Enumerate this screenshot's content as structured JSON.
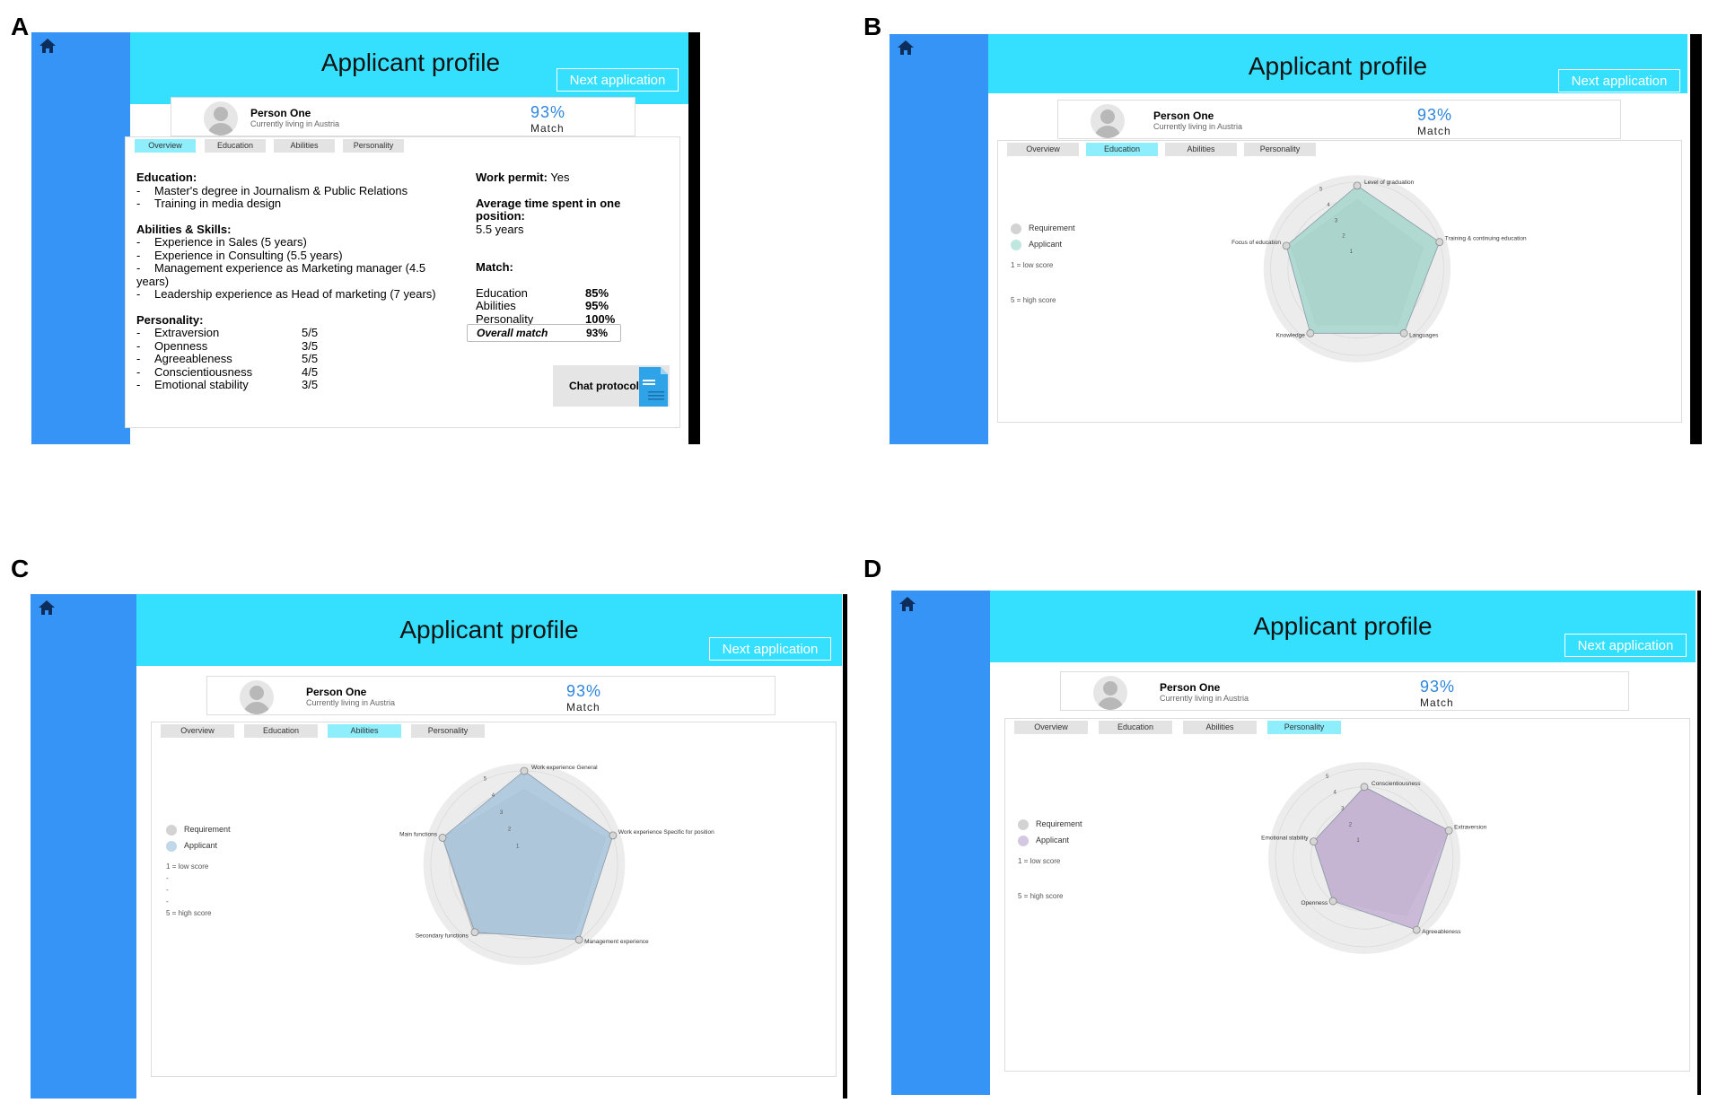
{
  "panels": [
    {
      "letter": "A",
      "active_tab": 0
    },
    {
      "letter": "B",
      "active_tab": 1
    },
    {
      "letter": "C",
      "active_tab": 2
    },
    {
      "letter": "D",
      "active_tab": 3
    }
  ],
  "header": {
    "title": "Applicant profile",
    "next_label": "Next application"
  },
  "person": {
    "name": "Person One",
    "location": "Currently living in Austria",
    "match_pct": "93%",
    "match_label": "Match"
  },
  "tabs": [
    "Overview",
    "Education",
    "Abilities",
    "Personality"
  ],
  "overview": {
    "education_head": "Education:",
    "education_items": [
      "Master's degree in Journalism & Public Relations",
      "Training in media design"
    ],
    "abilities_head": "Abilities & Skills:",
    "abilities_items": [
      "Experience in Sales (5 years)",
      "Experience in Consulting (5.5 years)",
      "Management experience as Marketing manager (4.5 years)",
      "Leadership experience as Head of marketing (7 years)"
    ],
    "personality_head": "Personality:",
    "personality_items": [
      {
        "trait": "Extraversion",
        "score": "5/5"
      },
      {
        "trait": "Openness",
        "score": "3/5"
      },
      {
        "trait": "Agreeableness",
        "score": "5/5"
      },
      {
        "trait": "Conscientiousness",
        "score": "4/5"
      },
      {
        "trait": "Emotional stability",
        "score": "3/5"
      }
    ],
    "work_permit_label": "Work permit:",
    "work_permit_value": "Yes",
    "avg_time_label": "Average time spent in one position:",
    "avg_time_value": "5.5 years",
    "match_head": "Match:",
    "match_rows": [
      {
        "label": "Education",
        "value": "85%"
      },
      {
        "label": "Abilities",
        "value": "95%"
      },
      {
        "label": "Personality",
        "value": "100%"
      }
    ],
    "overall_label": "Overall match",
    "overall_value": "93%",
    "chat_label": "Chat protocol"
  },
  "legend": {
    "requirement": "Requirement",
    "applicant": "Applicant",
    "low": "1 = low score",
    "dots": [
      "-",
      "-",
      "-"
    ],
    "high": "5 = high score"
  },
  "radar_scale_labels": [
    "1",
    "2",
    "3",
    "4",
    "5"
  ],
  "chart_data": [
    {
      "type": "radar",
      "panel": "B",
      "axes": [
        "Level of graduation",
        "Training & continuing education",
        "Languages",
        "Knowledge",
        "Focus of education"
      ],
      "series": [
        {
          "name": "Requirement",
          "values": [
            4,
            4,
            4,
            4,
            4
          ]
        },
        {
          "name": "Applicant",
          "values": [
            4.8,
            5,
            4.6,
            4.6,
            4.3
          ]
        }
      ],
      "colors": {
        "requirement": "#c8c8c8",
        "applicant": "#a5d6cc"
      }
    },
    {
      "type": "radar",
      "panel": "C",
      "axes": [
        "Work experience General",
        "Work experience Specific for position",
        "Management experience",
        "Secondary functions",
        "Main functions"
      ],
      "series": [
        {
          "name": "Requirement",
          "values": [
            4,
            4.6,
            4.6,
            4.6,
            4.6
          ]
        },
        {
          "name": "Applicant",
          "values": [
            5,
            5,
            5,
            4.5,
            4.6
          ]
        }
      ],
      "colors": {
        "requirement": "#c8c8c8",
        "applicant": "#a9c6dc"
      }
    },
    {
      "type": "radar",
      "panel": "D",
      "axes": [
        "Conscientiousness",
        "Extraversion",
        "Agreeableness",
        "Openness",
        "Emotional stability"
      ],
      "series": [
        {
          "name": "Requirement",
          "values": [
            4,
            5,
            4,
            3,
            3
          ]
        },
        {
          "name": "Applicant",
          "values": [
            4,
            5,
            5,
            3,
            3
          ]
        }
      ],
      "colors": {
        "requirement": "#c8c8c8",
        "applicant": "#c4b0d4"
      }
    }
  ]
}
